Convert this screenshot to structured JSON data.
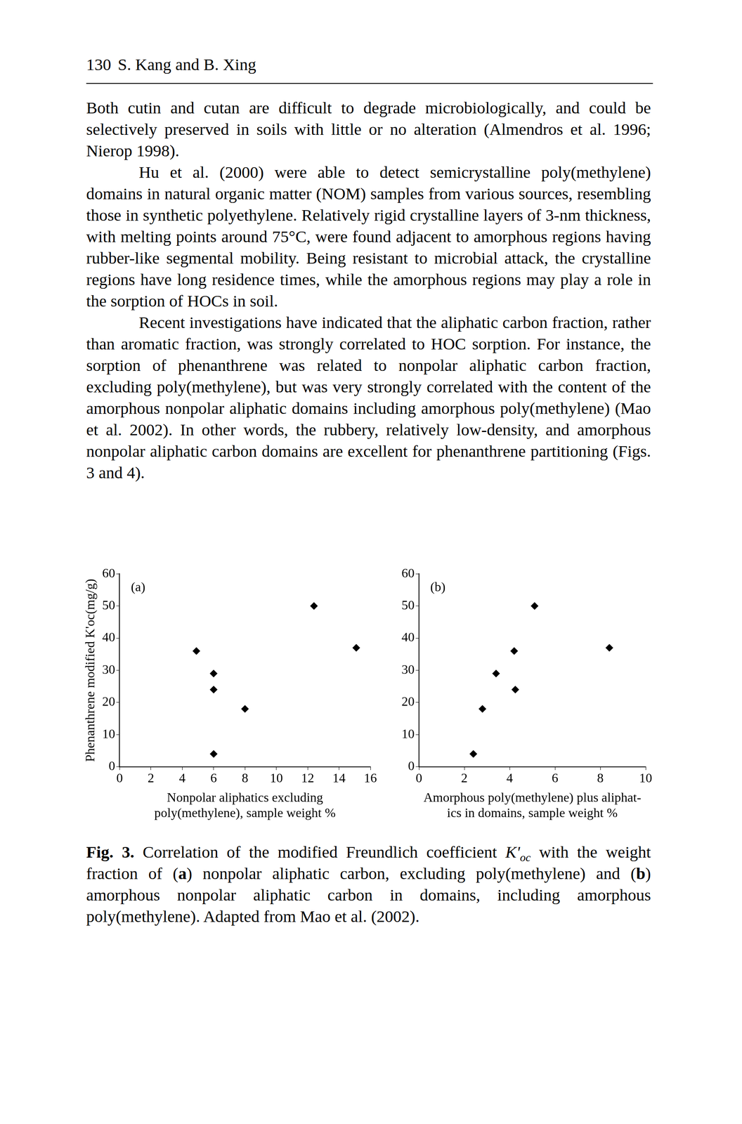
{
  "header": {
    "page_number": "130",
    "authors": "S. Kang and B. Xing"
  },
  "paragraphs": [
    "Both cutin and cutan are difficult to degrade microbiologically, and could be selectively preserved in soils with little or no alteration (Almendros et al. 1996; Nierop 1998).",
    "Hu et al. (2000) were able to detect semicrystalline poly(methylene) domains in natural organic matter (NOM) samples from various sources, resembling those in synthetic polyethylene. Relatively rigid crystalline layers of 3-nm thickness, with melting points around 75°C, were found adjacent to amorphous regions having rubber-like segmental mobility. Being resistant to microbial attack, the crystalline regions have long residence times, while the amorphous regions may play a role in the sorption of HOCs in soil.",
    "Recent investigations have indicated that the aliphatic carbon fraction, rather than aromatic fraction, was strongly correlated to HOC sorption. For instance, the sorption of phenanthrene was related to nonpolar aliphatic carbon fraction, excluding poly(methylene), but was very strongly correlated with the content of the amorphous nonpolar aliphatic domains including amorphous poly(methylene) (Mao et al. 2002). In other words, the rubbery, relatively low-density, and amorphous nonpolar aliphatic carbon domains are excellent for phenanthrene partitioning (Figs. 3 and 4)."
  ],
  "chart_data": [
    {
      "type": "scatter",
      "annotation": "(a)",
      "x_label": [
        "Nonpolar aliphatics excluding",
        "poly(methylene), sample weight %"
      ],
      "y_label": "Phenanthrene modified K'oc(mg/g)",
      "x": [
        4.9,
        6.0,
        6.0,
        6.0,
        8.0,
        12.4,
        15.1
      ],
      "values": [
        36,
        29,
        24,
        4,
        18,
        50,
        37
      ],
      "color": "#000000",
      "marker": "diamond",
      "xlim": [
        0,
        16
      ],
      "xticks": [
        0,
        2,
        4,
        6,
        8,
        10,
        12,
        14,
        16
      ],
      "ylim": [
        0,
        60
      ],
      "yticks": [
        0,
        10,
        20,
        30,
        40,
        50,
        60
      ],
      "grid": false,
      "legend": "none"
    },
    {
      "type": "scatter",
      "annotation": "(b)",
      "x_label": [
        "Amorphous poly(methylene) plus aliphat-",
        "ics in domains, sample weight %"
      ],
      "x": [
        2.4,
        2.8,
        3.4,
        4.2,
        4.25,
        5.1,
        8.4
      ],
      "values": [
        4,
        18,
        29,
        36,
        24,
        50,
        37
      ],
      "color": "#000000",
      "marker": "diamond",
      "xlim": [
        0,
        10
      ],
      "xticks": [
        0,
        2,
        4,
        6,
        8,
        10
      ],
      "ylim": [
        0,
        60
      ],
      "yticks": [
        0,
        10,
        20,
        30,
        40,
        50,
        60
      ],
      "grid": false,
      "legend": "none"
    }
  ],
  "caption": [
    {
      "text": "Fig. 3.",
      "style": "bold"
    },
    {
      "text": " Correlation of the modified Freundlich coefficient "
    },
    {
      "text": "K'",
      "style": "italic"
    },
    {
      "text": "oc",
      "style": "sub"
    },
    {
      "text": " with the weight fraction of ("
    },
    {
      "text": "a",
      "style": "bold"
    },
    {
      "text": ") nonpolar aliphatic carbon, excluding poly(methylene) and ("
    },
    {
      "text": "b",
      "style": "bold"
    },
    {
      "text": ") amorphous nonpolar aliphatic carbon in domains, including amorphous poly(methylene). Adapted from Mao et al. (2002)."
    }
  ]
}
